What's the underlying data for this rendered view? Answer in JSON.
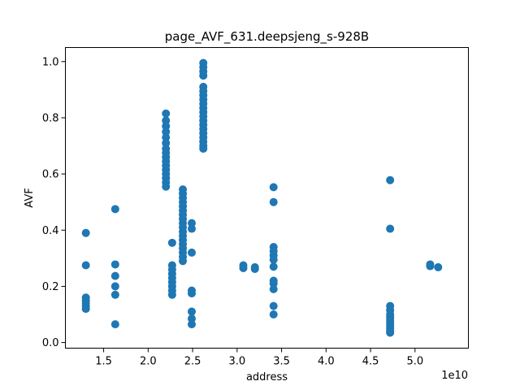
{
  "chart_data": {
    "type": "scatter",
    "title": "page_AVF_631.deepsjeng_s-928B",
    "xlabel": "address",
    "ylabel": "AVF",
    "x_offset_label": "1e10",
    "xlim": [
      1.07,
      5.6
    ],
    "ylim": [
      -0.02,
      1.05
    ],
    "x_ticks": [
      {
        "value": 1.5,
        "label": "1.5"
      },
      {
        "value": 2.0,
        "label": "2.0"
      },
      {
        "value": 2.5,
        "label": "2.5"
      },
      {
        "value": 3.0,
        "label": "3.0"
      },
      {
        "value": 3.5,
        "label": "3.5"
      },
      {
        "value": 4.0,
        "label": "4.0"
      },
      {
        "value": 4.5,
        "label": "4.5"
      },
      {
        "value": 5.0,
        "label": "5.0"
      }
    ],
    "y_ticks": [
      {
        "value": 0.0,
        "label": "0.0"
      },
      {
        "value": 0.2,
        "label": "0.2"
      },
      {
        "value": 0.4,
        "label": "0.4"
      },
      {
        "value": 0.6,
        "label": "0.6"
      },
      {
        "value": 0.8,
        "label": "0.8"
      },
      {
        "value": 1.0,
        "label": "1.0"
      }
    ],
    "grid": false,
    "marker_color": "#1f77b4",
    "points": [
      {
        "x": 1.3,
        "y": 0.39
      },
      {
        "x": 1.3,
        "y": 0.275
      },
      {
        "x": 1.3,
        "y": 0.16
      },
      {
        "x": 1.3,
        "y": 0.15
      },
      {
        "x": 1.3,
        "y": 0.14
      },
      {
        "x": 1.3,
        "y": 0.13
      },
      {
        "x": 1.3,
        "y": 0.12
      },
      {
        "x": 1.63,
        "y": 0.475
      },
      {
        "x": 1.63,
        "y": 0.278
      },
      {
        "x": 1.63,
        "y": 0.237
      },
      {
        "x": 1.63,
        "y": 0.2
      },
      {
        "x": 1.63,
        "y": 0.17
      },
      {
        "x": 1.63,
        "y": 0.065
      },
      {
        "x": 2.2,
        "y": 0.815
      },
      {
        "x": 2.2,
        "y": 0.79
      },
      {
        "x": 2.2,
        "y": 0.77
      },
      {
        "x": 2.2,
        "y": 0.75
      },
      {
        "x": 2.2,
        "y": 0.73
      },
      {
        "x": 2.2,
        "y": 0.71
      },
      {
        "x": 2.2,
        "y": 0.69
      },
      {
        "x": 2.2,
        "y": 0.675
      },
      {
        "x": 2.2,
        "y": 0.66
      },
      {
        "x": 2.2,
        "y": 0.645
      },
      {
        "x": 2.2,
        "y": 0.63
      },
      {
        "x": 2.2,
        "y": 0.615
      },
      {
        "x": 2.2,
        "y": 0.6
      },
      {
        "x": 2.2,
        "y": 0.585
      },
      {
        "x": 2.2,
        "y": 0.57
      },
      {
        "x": 2.2,
        "y": 0.555
      },
      {
        "x": 2.27,
        "y": 0.355
      },
      {
        "x": 2.27,
        "y": 0.275
      },
      {
        "x": 2.27,
        "y": 0.26
      },
      {
        "x": 2.27,
        "y": 0.245
      },
      {
        "x": 2.27,
        "y": 0.23
      },
      {
        "x": 2.27,
        "y": 0.215
      },
      {
        "x": 2.27,
        "y": 0.2
      },
      {
        "x": 2.27,
        "y": 0.185
      },
      {
        "x": 2.27,
        "y": 0.17
      },
      {
        "x": 2.39,
        "y": 0.545
      },
      {
        "x": 2.39,
        "y": 0.53
      },
      {
        "x": 2.39,
        "y": 0.515
      },
      {
        "x": 2.39,
        "y": 0.5
      },
      {
        "x": 2.39,
        "y": 0.485
      },
      {
        "x": 2.39,
        "y": 0.47
      },
      {
        "x": 2.39,
        "y": 0.455
      },
      {
        "x": 2.39,
        "y": 0.44
      },
      {
        "x": 2.39,
        "y": 0.425
      },
      {
        "x": 2.39,
        "y": 0.41
      },
      {
        "x": 2.39,
        "y": 0.395
      },
      {
        "x": 2.39,
        "y": 0.38
      },
      {
        "x": 2.39,
        "y": 0.365
      },
      {
        "x": 2.39,
        "y": 0.35
      },
      {
        "x": 2.39,
        "y": 0.335
      },
      {
        "x": 2.39,
        "y": 0.32
      },
      {
        "x": 2.39,
        "y": 0.305
      },
      {
        "x": 2.39,
        "y": 0.29
      },
      {
        "x": 2.49,
        "y": 0.425
      },
      {
        "x": 2.49,
        "y": 0.405
      },
      {
        "x": 2.49,
        "y": 0.32
      },
      {
        "x": 2.49,
        "y": 0.185
      },
      {
        "x": 2.49,
        "y": 0.175
      },
      {
        "x": 2.49,
        "y": 0.11
      },
      {
        "x": 2.49,
        "y": 0.085
      },
      {
        "x": 2.49,
        "y": 0.065
      },
      {
        "x": 2.62,
        "y": 0.995
      },
      {
        "x": 2.62,
        "y": 0.98
      },
      {
        "x": 2.62,
        "y": 0.965
      },
      {
        "x": 2.62,
        "y": 0.95
      },
      {
        "x": 2.62,
        "y": 0.91
      },
      {
        "x": 2.62,
        "y": 0.895
      },
      {
        "x": 2.62,
        "y": 0.88
      },
      {
        "x": 2.62,
        "y": 0.865
      },
      {
        "x": 2.62,
        "y": 0.85
      },
      {
        "x": 2.62,
        "y": 0.835
      },
      {
        "x": 2.62,
        "y": 0.82
      },
      {
        "x": 2.62,
        "y": 0.805
      },
      {
        "x": 2.62,
        "y": 0.79
      },
      {
        "x": 2.62,
        "y": 0.775
      },
      {
        "x": 2.62,
        "y": 0.76
      },
      {
        "x": 2.62,
        "y": 0.745
      },
      {
        "x": 2.62,
        "y": 0.73
      },
      {
        "x": 2.62,
        "y": 0.715
      },
      {
        "x": 2.62,
        "y": 0.7
      },
      {
        "x": 2.62,
        "y": 0.69
      },
      {
        "x": 3.07,
        "y": 0.275
      },
      {
        "x": 3.07,
        "y": 0.265
      },
      {
        "x": 3.2,
        "y": 0.268
      },
      {
        "x": 3.2,
        "y": 0.262
      },
      {
        "x": 3.41,
        "y": 0.553
      },
      {
        "x": 3.41,
        "y": 0.5
      },
      {
        "x": 3.41,
        "y": 0.34
      },
      {
        "x": 3.41,
        "y": 0.325
      },
      {
        "x": 3.41,
        "y": 0.31
      },
      {
        "x": 3.41,
        "y": 0.295
      },
      {
        "x": 3.41,
        "y": 0.27
      },
      {
        "x": 3.41,
        "y": 0.22
      },
      {
        "x": 3.41,
        "y": 0.21
      },
      {
        "x": 3.41,
        "y": 0.19
      },
      {
        "x": 3.41,
        "y": 0.13
      },
      {
        "x": 3.41,
        "y": 0.1
      },
      {
        "x": 4.72,
        "y": 0.578
      },
      {
        "x": 4.72,
        "y": 0.405
      },
      {
        "x": 4.72,
        "y": 0.13
      },
      {
        "x": 4.72,
        "y": 0.115
      },
      {
        "x": 4.72,
        "y": 0.1
      },
      {
        "x": 4.72,
        "y": 0.09
      },
      {
        "x": 4.72,
        "y": 0.08
      },
      {
        "x": 4.72,
        "y": 0.07
      },
      {
        "x": 4.72,
        "y": 0.06
      },
      {
        "x": 4.72,
        "y": 0.05
      },
      {
        "x": 4.72,
        "y": 0.04
      },
      {
        "x": 4.72,
        "y": 0.035
      },
      {
        "x": 5.17,
        "y": 0.278
      },
      {
        "x": 5.17,
        "y": 0.272
      },
      {
        "x": 5.26,
        "y": 0.268
      }
    ]
  }
}
